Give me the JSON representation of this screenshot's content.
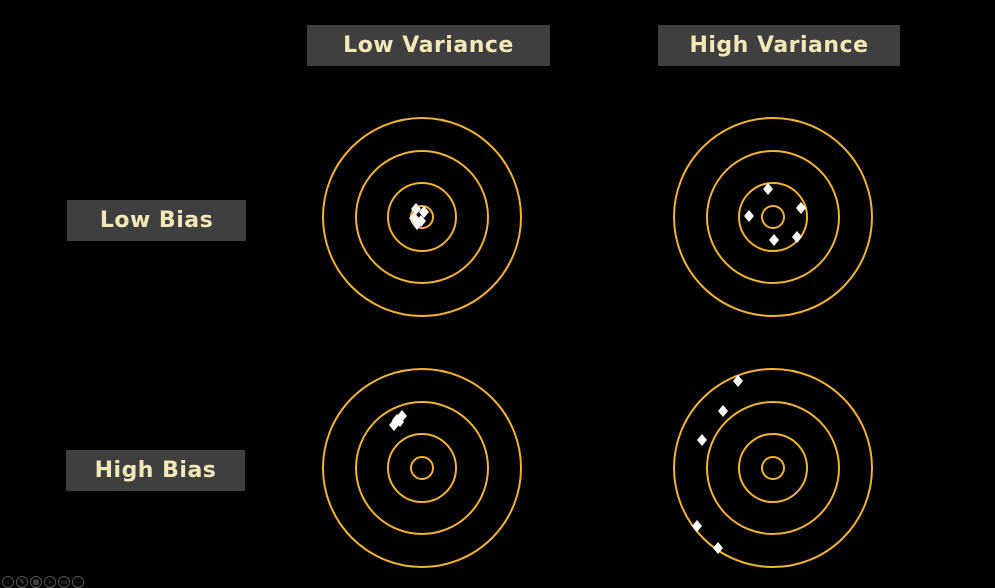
{
  "columns": {
    "low_variance": "Low Variance",
    "high_variance": "High Variance"
  },
  "rows": {
    "low_bias": "Low Bias",
    "high_bias": "High Bias"
  },
  "colors": {
    "background": "#000000",
    "ring": "#f2b233",
    "marker": "#ffffff",
    "label_bg": "#3f3f3f",
    "label_text": "#f4e7b8"
  },
  "icons": [
    "presentation-toolbar-icons"
  ]
}
